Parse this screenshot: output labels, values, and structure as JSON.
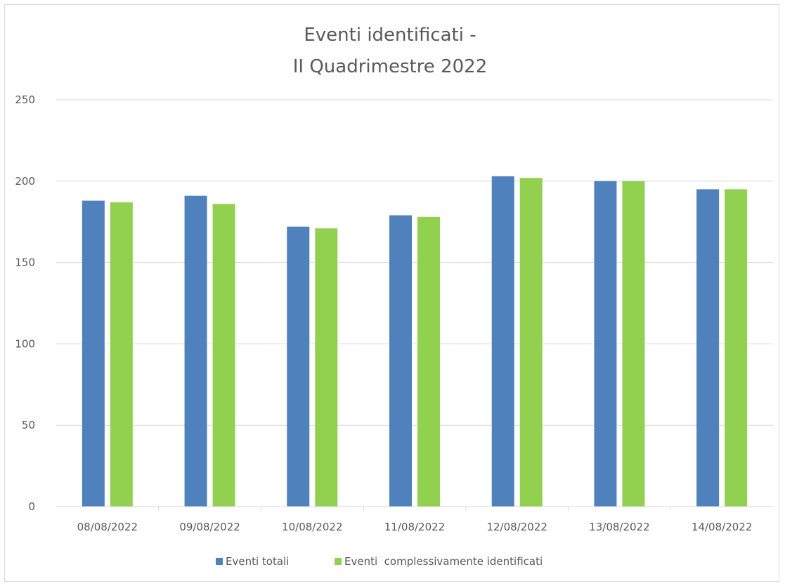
{
  "chart_data": {
    "type": "bar",
    "title_lines": [
      "Eventi identificati -",
      "II Quadrimestre 2022"
    ],
    "xlabel": "",
    "ylabel": "",
    "categories": [
      "08/08/2022",
      "09/08/2022",
      "10/08/2022",
      "11/08/2022",
      "12/08/2022",
      "13/08/2022",
      "14/08/2022"
    ],
    "series": [
      {
        "name": "Eventi totali",
        "color": "#4f81bd",
        "values": [
          188,
          191,
          172,
          179,
          203,
          200,
          195
        ]
      },
      {
        "name": "Eventi  complessivamente identificati",
        "color": "#92d050",
        "values": [
          187,
          186,
          171,
          178,
          202,
          200,
          195
        ]
      }
    ],
    "ylim": [
      0,
      250
    ],
    "yticks": [
      0,
      50,
      100,
      150,
      200,
      250
    ],
    "grid": true,
    "gridline_color": "#d9d9d9",
    "legend_position": "bottom"
  }
}
